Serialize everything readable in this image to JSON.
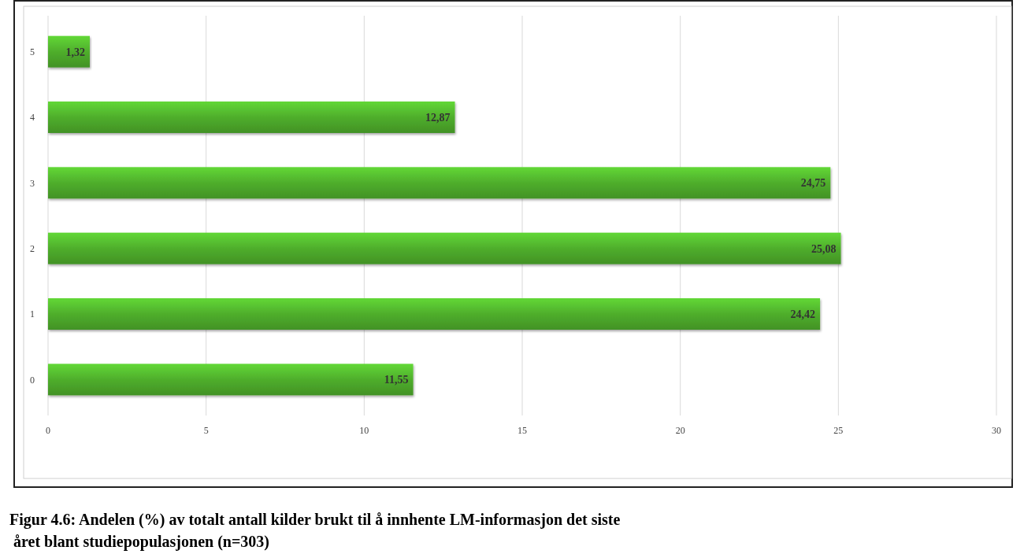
{
  "chart_data": {
    "type": "bar",
    "orientation": "horizontal",
    "title": "Figur 4.6: Andelen (%) av totalt antall kilder brukt til å innhente LM-informasjon det siste året blant studiepopulasjonen (n=303)",
    "categories": [
      "5",
      "4",
      "3",
      "2",
      "1",
      "0"
    ],
    "values": [
      1.32,
      12.87,
      24.75,
      25.08,
      24.42,
      11.55
    ],
    "value_labels": [
      "1,32",
      "12,87",
      "24,75",
      "25,08",
      "24,42",
      "11,55"
    ],
    "color": "#4fae2c",
    "xlim": [
      0,
      30
    ],
    "xticks": [
      0,
      5,
      10,
      15,
      20,
      25,
      30
    ],
    "grid": "x"
  }
}
